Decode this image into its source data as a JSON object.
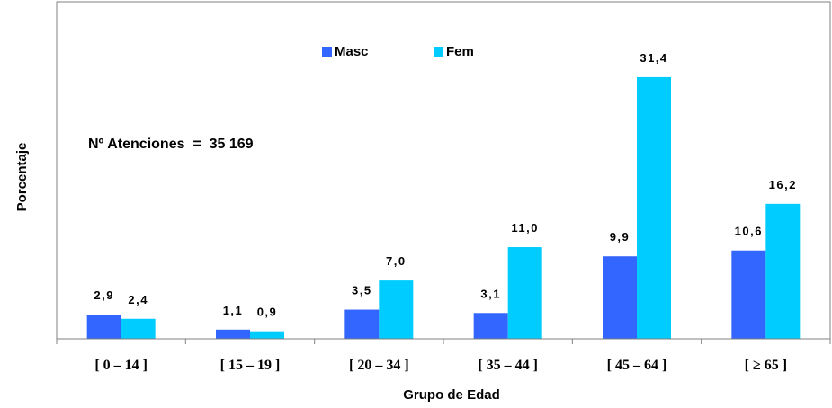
{
  "chart_data": {
    "type": "bar",
    "categories": [
      "[ 0 – 14 ]",
      "[ 15 – 19 ]",
      "[ 20 – 34 ]",
      "[ 35 – 44 ]",
      "[ 45 – 64 ]",
      "[ ≥ 65 ]"
    ],
    "series": [
      {
        "name": "Masc",
        "color": "#3366ff",
        "values": [
          2.9,
          1.1,
          3.5,
          3.1,
          9.9,
          10.6
        ],
        "labels": [
          "2,9",
          "1,1",
          "3,5",
          "3,1",
          "9,9",
          "10,6"
        ]
      },
      {
        "name": "Fem",
        "color": "#00ccff",
        "values": [
          2.4,
          0.9,
          7.0,
          11.0,
          31.4,
          16.2
        ],
        "labels": [
          "2,4",
          "0,9",
          "7,0",
          "11,0",
          "31,4",
          "16,2"
        ]
      }
    ],
    "xlabel": "Grupo de Edad",
    "ylabel": "Porcentaje",
    "annotation": "Nº Atenciones  =  35 169",
    "legend_position": "top-center",
    "grid": false
  }
}
